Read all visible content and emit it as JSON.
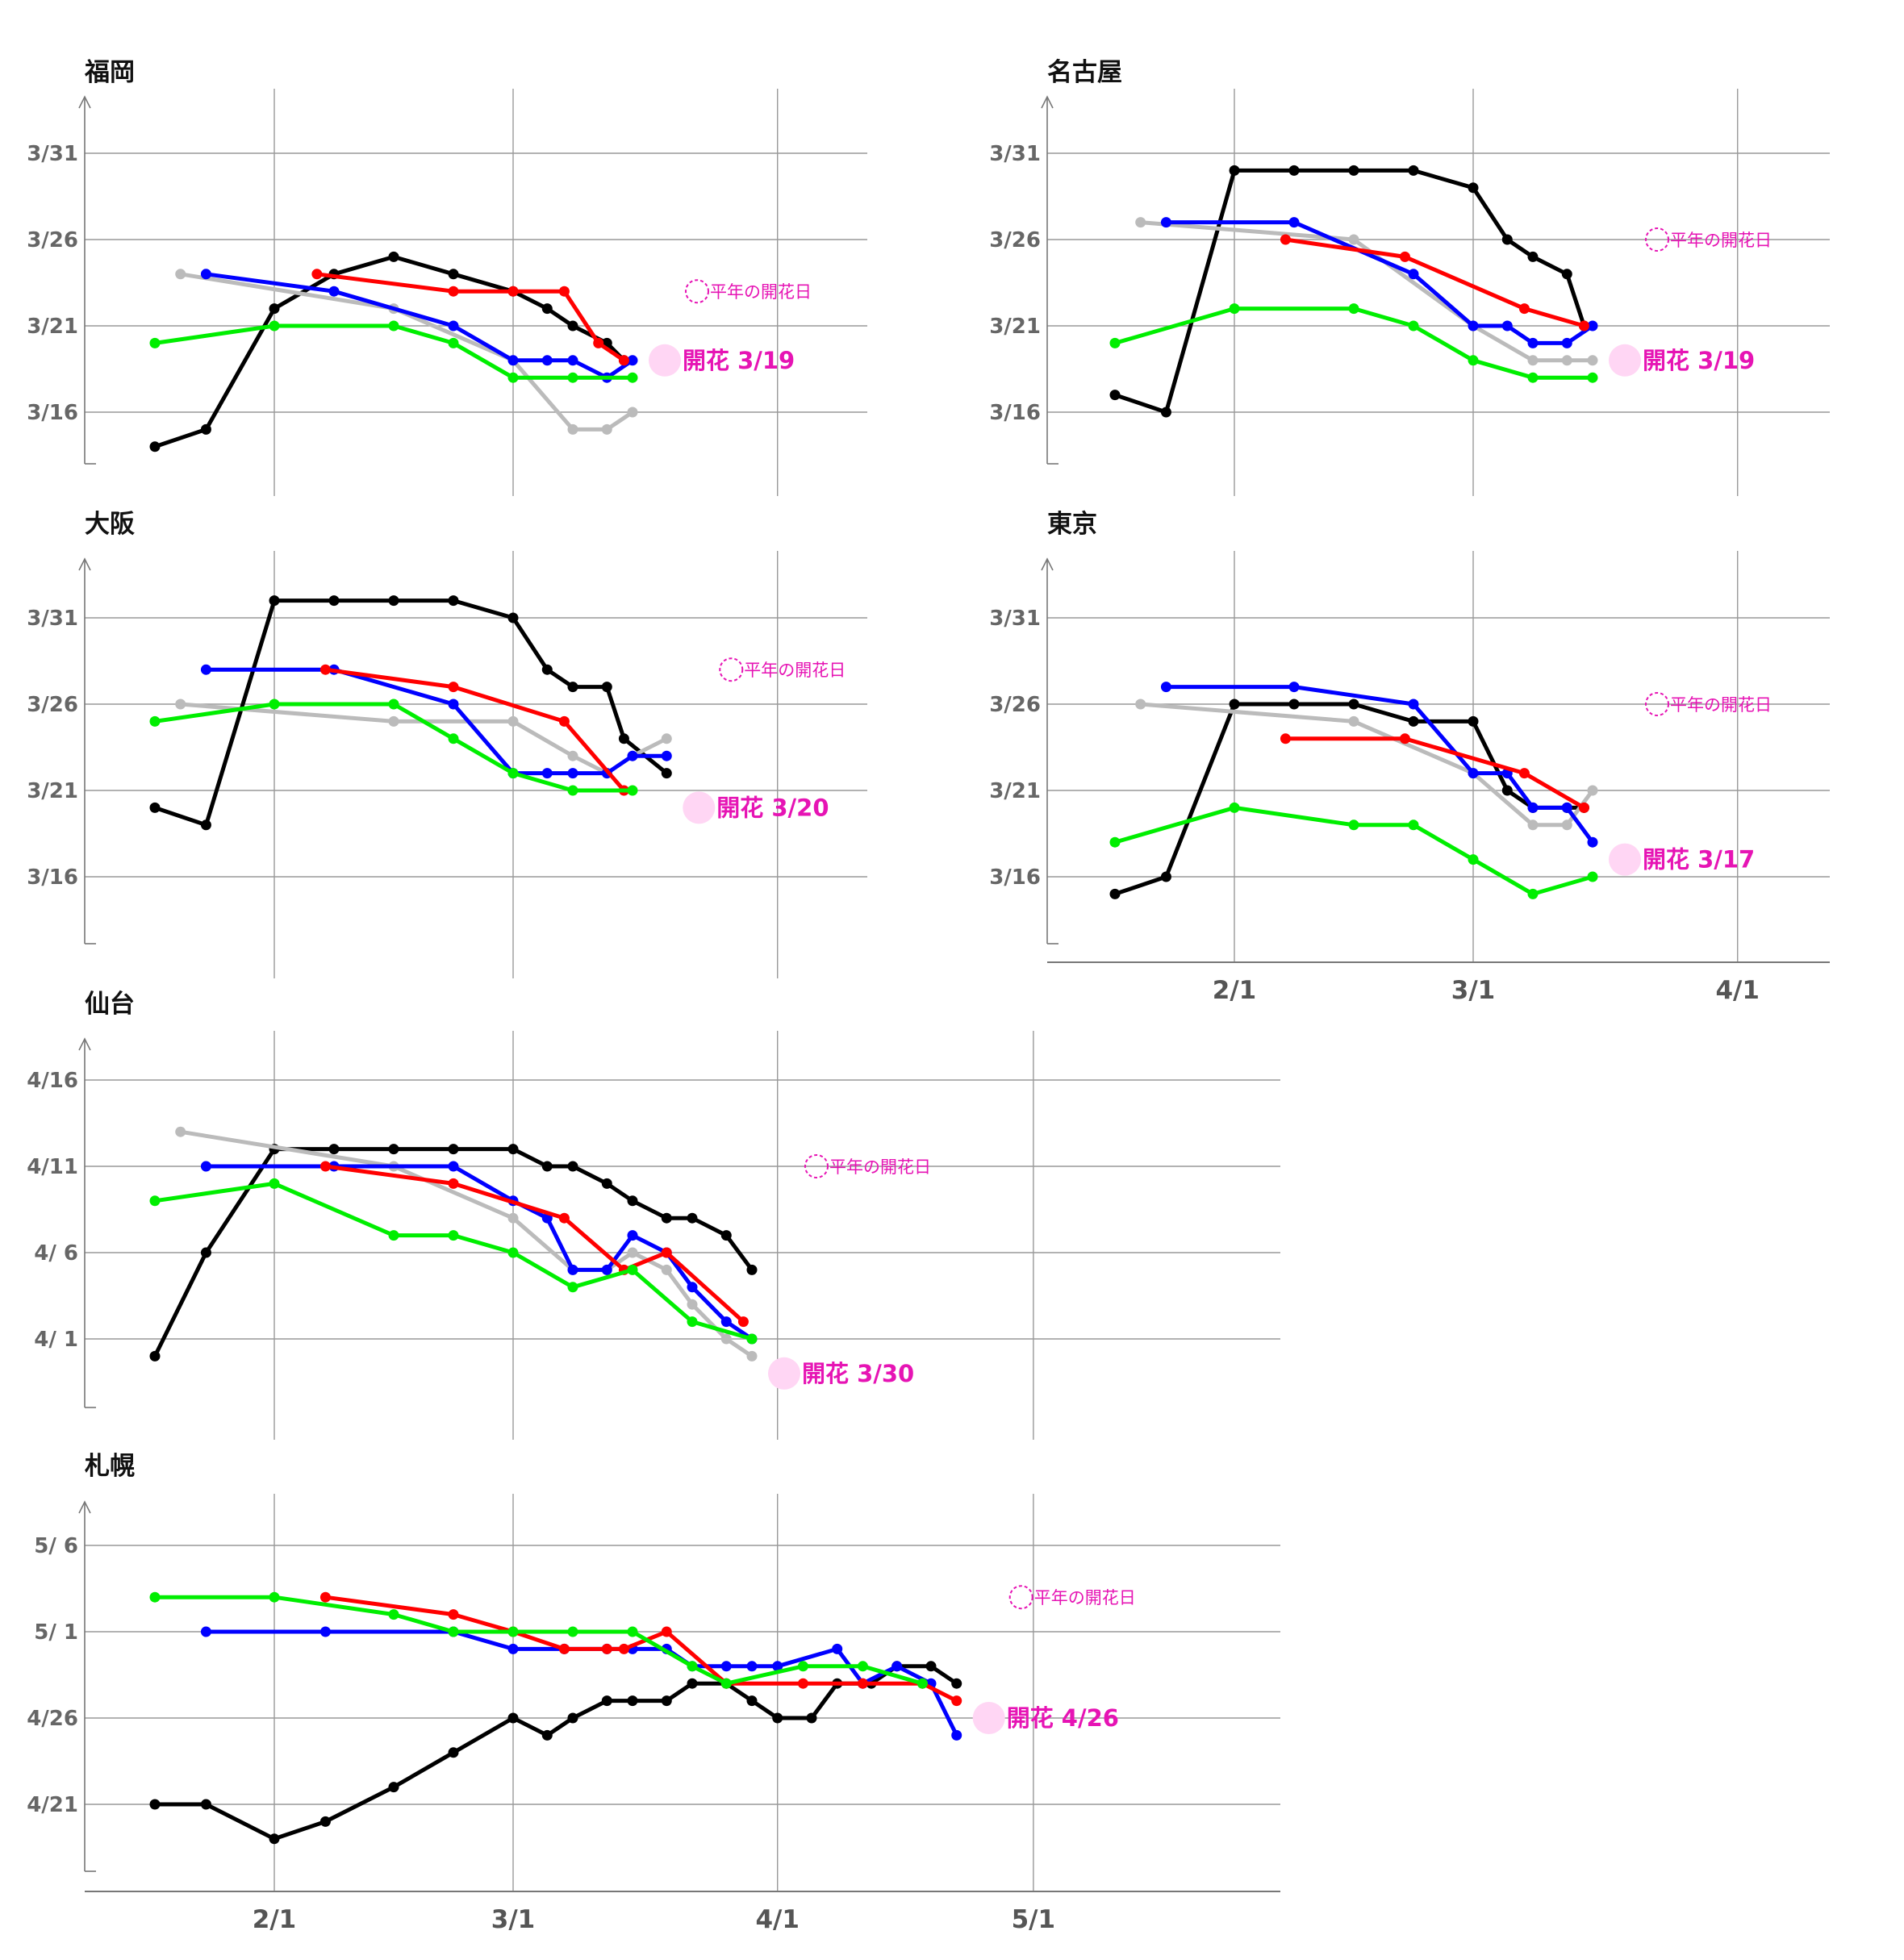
{
  "chart_data": [
    {
      "type": "line",
      "title": "福岡",
      "x_ticks": [
        "2/1",
        "3/1",
        "4/1"
      ],
      "y_ticks": [
        "3/16",
        "3/21",
        "3/26",
        "3/31"
      ],
      "normal_label": "平年の開花日",
      "normal_date": "3/23",
      "bloom_label": "開花 3/19",
      "bloom_date": "3/19",
      "series": [
        {
          "color": "#000000",
          "x": [
            "1/18",
            "1/24",
            "2/1",
            "2/8",
            "2/15",
            "2/22",
            "3/1",
            "3/5",
            "3/8",
            "3/12",
            "3/14"
          ],
          "values": [
            "3/14",
            "3/15",
            "3/22",
            "3/24",
            "3/25",
            "3/24",
            "3/23",
            "3/22",
            "3/21",
            "3/20",
            "3/19"
          ]
        },
        {
          "color": "#bbbbbb",
          "x": [
            "1/21",
            "2/15",
            "3/1",
            "3/8",
            "3/12",
            "3/15"
          ],
          "values": [
            "3/24",
            "3/22",
            "3/19",
            "3/15",
            "3/15",
            "3/16"
          ]
        },
        {
          "color": "#0000ff",
          "x": [
            "1/24",
            "2/8",
            "2/22",
            "3/1",
            "3/5",
            "3/8",
            "3/12",
            "3/15"
          ],
          "values": [
            "3/24",
            "3/23",
            "3/21",
            "3/19",
            "3/19",
            "3/19",
            "3/18",
            "3/19"
          ]
        },
        {
          "color": "#ff0000",
          "x": [
            "2/6",
            "2/22",
            "3/1",
            "3/7",
            "3/11",
            "3/14"
          ],
          "values": [
            "3/24",
            "3/23",
            "3/23",
            "3/23",
            "3/20",
            "3/19"
          ]
        },
        {
          "color": "#00ee00",
          "x": [
            "1/18",
            "2/1",
            "2/15",
            "2/22",
            "3/1",
            "3/8",
            "3/15"
          ],
          "values": [
            "3/20",
            "3/21",
            "3/21",
            "3/20",
            "3/18",
            "3/18",
            "3/18"
          ]
        }
      ]
    },
    {
      "type": "line",
      "title": "名古屋",
      "x_ticks": [
        "2/1",
        "3/1",
        "4/1"
      ],
      "y_ticks": [
        "3/16",
        "3/21",
        "3/26",
        "3/31"
      ],
      "normal_label": "平年の開花日",
      "normal_date": "3/26",
      "bloom_label": "開花 3/19",
      "bloom_date": "3/19",
      "series": [
        {
          "color": "#000000",
          "x": [
            "1/18",
            "1/24",
            "2/1",
            "2/8",
            "2/15",
            "2/22",
            "3/1",
            "3/5",
            "3/8",
            "3/12",
            "3/14"
          ],
          "values": [
            "3/17",
            "3/16",
            "3/30",
            "3/30",
            "3/30",
            "3/30",
            "3/29",
            "3/26",
            "3/25",
            "3/24",
            "3/21"
          ]
        },
        {
          "color": "#bbbbbb",
          "x": [
            "1/21",
            "2/15",
            "3/1",
            "3/8",
            "3/12",
            "3/15"
          ],
          "values": [
            "3/27",
            "3/26",
            "3/21",
            "3/19",
            "3/19",
            "3/19"
          ]
        },
        {
          "color": "#0000ff",
          "x": [
            "1/24",
            "2/8",
            "2/22",
            "3/1",
            "3/5",
            "3/8",
            "3/12",
            "3/15"
          ],
          "values": [
            "3/27",
            "3/27",
            "3/24",
            "3/21",
            "3/21",
            "3/20",
            "3/20",
            "3/21"
          ]
        },
        {
          "color": "#ff0000",
          "x": [
            "2/7",
            "2/21",
            "3/7",
            "3/14"
          ],
          "values": [
            "3/26",
            "3/25",
            "3/22",
            "3/21"
          ]
        },
        {
          "color": "#00ee00",
          "x": [
            "1/18",
            "2/1",
            "2/15",
            "2/22",
            "3/1",
            "3/8",
            "3/15"
          ],
          "values": [
            "3/20",
            "3/22",
            "3/22",
            "3/21",
            "3/19",
            "3/18",
            "3/18"
          ]
        }
      ]
    },
    {
      "type": "line",
      "title": "大阪",
      "x_ticks": [
        "2/1",
        "3/1",
        "4/1"
      ],
      "y_ticks": [
        "3/16",
        "3/21",
        "3/26",
        "3/31"
      ],
      "normal_label": "平年の開花日",
      "normal_date": "3/28",
      "bloom_label": "開花 3/20",
      "bloom_date": "3/20",
      "series": [
        {
          "color": "#000000",
          "x": [
            "1/18",
            "1/24",
            "2/1",
            "2/8",
            "2/15",
            "2/22",
            "3/1",
            "3/5",
            "3/8",
            "3/12",
            "3/14",
            "3/19"
          ],
          "values": [
            "3/20",
            "3/19",
            "4/1",
            "4/1",
            "4/1",
            "4/1",
            "3/31",
            "3/28",
            "3/27",
            "3/27",
            "3/24",
            "3/22"
          ]
        },
        {
          "color": "#bbbbbb",
          "x": [
            "1/21",
            "2/15",
            "3/1",
            "3/8",
            "3/12",
            "3/15",
            "3/19"
          ],
          "values": [
            "3/26",
            "3/25",
            "3/25",
            "3/23",
            "3/22",
            "3/23",
            "3/24"
          ]
        },
        {
          "color": "#0000ff",
          "x": [
            "1/24",
            "2/8",
            "2/22",
            "3/1",
            "3/5",
            "3/8",
            "3/12",
            "3/15",
            "3/19"
          ],
          "values": [
            "3/28",
            "3/28",
            "3/26",
            "3/22",
            "3/22",
            "3/22",
            "3/22",
            "3/23",
            "3/23"
          ]
        },
        {
          "color": "#ff0000",
          "x": [
            "2/7",
            "2/22",
            "3/7",
            "3/14"
          ],
          "values": [
            "3/28",
            "3/27",
            "3/25",
            "3/21"
          ]
        },
        {
          "color": "#00ee00",
          "x": [
            "1/18",
            "2/1",
            "2/15",
            "2/22",
            "3/1",
            "3/8",
            "3/15"
          ],
          "values": [
            "3/25",
            "3/26",
            "3/26",
            "3/24",
            "3/22",
            "3/21",
            "3/21"
          ]
        }
      ]
    },
    {
      "type": "line",
      "title": "東京",
      "x_ticks": [
        "2/1",
        "3/1",
        "4/1"
      ],
      "y_ticks": [
        "3/16",
        "3/21",
        "3/26",
        "3/31"
      ],
      "normal_label": "平年の開花日",
      "normal_date": "3/26",
      "bloom_label": "開花 3/17",
      "bloom_date": "3/17",
      "series": [
        {
          "color": "#000000",
          "x": [
            "1/18",
            "1/24",
            "2/1",
            "2/8",
            "2/15",
            "2/22",
            "3/1",
            "3/5",
            "3/8",
            "3/12",
            "3/14"
          ],
          "values": [
            "3/15",
            "3/16",
            "3/26",
            "3/26",
            "3/26",
            "3/25",
            "3/25",
            "3/21",
            "3/20",
            "3/20",
            "3/20"
          ]
        },
        {
          "color": "#bbbbbb",
          "x": [
            "1/21",
            "2/15",
            "3/1",
            "3/8",
            "3/12",
            "3/15"
          ],
          "values": [
            "3/26",
            "3/25",
            "3/22",
            "3/19",
            "3/19",
            "3/21"
          ]
        },
        {
          "color": "#0000ff",
          "x": [
            "1/24",
            "2/8",
            "2/22",
            "3/1",
            "3/5",
            "3/8",
            "3/12",
            "3/15"
          ],
          "values": [
            "3/27",
            "3/27",
            "3/26",
            "3/22",
            "3/22",
            "3/20",
            "3/20",
            "3/18"
          ]
        },
        {
          "color": "#ff0000",
          "x": [
            "2/7",
            "2/21",
            "3/7",
            "3/14"
          ],
          "values": [
            "3/24",
            "3/24",
            "3/22",
            "3/20"
          ]
        },
        {
          "color": "#00ee00",
          "x": [
            "1/18",
            "2/1",
            "2/15",
            "2/22",
            "3/1",
            "3/8",
            "3/15"
          ],
          "values": [
            "3/18",
            "3/20",
            "3/19",
            "3/19",
            "3/17",
            "3/15",
            "3/16"
          ]
        }
      ]
    },
    {
      "type": "line",
      "title": "仙台",
      "x_ticks": [
        "2/1",
        "3/1",
        "4/1",
        "5/1"
      ],
      "y_ticks": [
        "4/ 1",
        "4/ 6",
        "4/11",
        "4/16"
      ],
      "normal_label": "平年の開花日",
      "normal_date": "4/11",
      "bloom_label": "開花 3/30",
      "bloom_date": "3/30",
      "series": [
        {
          "color": "#000000",
          "x": [
            "1/18",
            "1/24",
            "2/1",
            "2/8",
            "2/15",
            "2/22",
            "3/1",
            "3/5",
            "3/8",
            "3/12",
            "3/15",
            "3/19",
            "3/22",
            "3/26",
            "3/29"
          ],
          "values": [
            "3/31",
            "4/6",
            "4/12",
            "4/12",
            "4/12",
            "4/12",
            "4/12",
            "4/11",
            "4/11",
            "4/10",
            "4/9",
            "4/8",
            "4/8",
            "4/7",
            "4/5"
          ]
        },
        {
          "color": "#bbbbbb",
          "x": [
            "1/21",
            "2/15",
            "3/1",
            "3/8",
            "3/12",
            "3/15",
            "3/19",
            "3/22",
            "3/26",
            "3/29"
          ],
          "values": [
            "4/13",
            "4/11",
            "4/8",
            "4/5",
            "4/5",
            "4/6",
            "4/5",
            "4/3",
            "4/1",
            "3/31"
          ]
        },
        {
          "color": "#0000ff",
          "x": [
            "1/24",
            "2/8",
            "2/22",
            "3/1",
            "3/5",
            "3/8",
            "3/12",
            "3/15",
            "3/19",
            "3/22",
            "3/26",
            "3/29"
          ],
          "values": [
            "4/11",
            "4/11",
            "4/11",
            "4/9",
            "4/8",
            "4/5",
            "4/5",
            "4/7",
            "4/6",
            "4/4",
            "4/2",
            "4/1"
          ]
        },
        {
          "color": "#ff0000",
          "x": [
            "2/7",
            "2/22",
            "3/7",
            "3/14",
            "3/19",
            "3/28"
          ],
          "values": [
            "4/11",
            "4/10",
            "4/8",
            "4/5",
            "4/6",
            "4/2"
          ]
        },
        {
          "color": "#00ee00",
          "x": [
            "1/18",
            "2/1",
            "2/15",
            "2/22",
            "3/1",
            "3/8",
            "3/15",
            "3/22",
            "3/29"
          ],
          "values": [
            "4/9",
            "4/10",
            "4/7",
            "4/7",
            "4/6",
            "4/4",
            "4/5",
            "4/2",
            "4/1"
          ]
        }
      ]
    },
    {
      "type": "line",
      "title": "札幌",
      "x_ticks": [
        "2/1",
        "3/1",
        "4/1",
        "5/1"
      ],
      "y_ticks": [
        "4/21",
        "4/26",
        "5/ 1",
        "5/ 6"
      ],
      "normal_label": "平年の開花日",
      "normal_date": "5/3",
      "bloom_label": "開花 4/26",
      "bloom_date": "4/26",
      "series": [
        {
          "color": "#000000",
          "x": [
            "1/18",
            "1/24",
            "2/1",
            "2/7",
            "2/15",
            "2/22",
            "3/1",
            "3/5",
            "3/8",
            "3/12",
            "3/15",
            "3/19",
            "3/22",
            "3/26",
            "3/29",
            "4/1",
            "4/5",
            "4/8",
            "4/12",
            "4/15",
            "4/19",
            "4/22"
          ],
          "values": [
            "4/21",
            "4/21",
            "4/19",
            "4/20",
            "4/22",
            "4/24",
            "4/26",
            "4/25",
            "4/26",
            "4/27",
            "4/27",
            "4/27",
            "4/28",
            "4/28",
            "4/27",
            "4/26",
            "4/26",
            "4/28",
            "4/28",
            "4/29",
            "4/29",
            "4/28"
          ]
        },
        {
          "color": "#0000ff",
          "x": [
            "1/24",
            "2/7",
            "2/22",
            "3/1",
            "3/7",
            "3/12",
            "3/15",
            "3/19",
            "3/22",
            "3/26",
            "3/29",
            "4/1",
            "4/8",
            "4/11",
            "4/15",
            "4/19",
            "4/22"
          ],
          "values": [
            "5/1",
            "5/1",
            "5/1",
            "4/30",
            "4/30",
            "4/30",
            "4/30",
            "4/30",
            "4/29",
            "4/29",
            "4/29",
            "4/29",
            "4/30",
            "4/28",
            "4/29",
            "4/28",
            "4/25"
          ]
        },
        {
          "color": "#ff0000",
          "x": [
            "2/7",
            "2/22",
            "3/1",
            "3/7",
            "3/12",
            "3/14",
            "3/19",
            "3/26",
            "4/4",
            "4/11",
            "4/18",
            "4/22"
          ],
          "values": [
            "5/3",
            "5/2",
            "5/1",
            "4/30",
            "4/30",
            "4/30",
            "5/1",
            "4/28",
            "4/28",
            "4/28",
            "4/28",
            "4/27"
          ]
        },
        {
          "color": "#00ee00",
          "x": [
            "1/18",
            "2/1",
            "2/15",
            "2/22",
            "3/1",
            "3/8",
            "3/15",
            "3/22",
            "3/26",
            "4/4",
            "4/11",
            "4/18"
          ],
          "values": [
            "5/3",
            "5/3",
            "5/2",
            "5/1",
            "5/1",
            "5/1",
            "5/1",
            "4/29",
            "4/28",
            "4/29",
            "4/29",
            "4/28"
          ]
        }
      ]
    }
  ]
}
